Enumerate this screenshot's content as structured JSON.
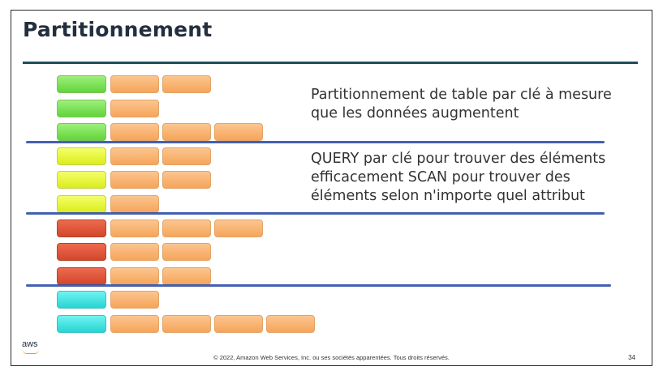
{
  "slide": {
    "title": "Partitionnement",
    "paragraph1": [
      "Partitionnement de table par clé à mesure",
      "que les données augmentent"
    ],
    "paragraph2": [
      "QUERY par clé pour trouver des éléments",
      "efficacement SCAN pour trouver des",
      "éléments selon n'importe quel attribut"
    ],
    "footer": "© 2022, Amazon Web Services, Inc. ou ses sociétés apparentées. Tous droits réservés.",
    "page_number": "34",
    "logo_text": "aws"
  },
  "table_rows": [
    {
      "key_color": "green",
      "items": 2
    },
    {
      "key_color": "green",
      "items": 1
    },
    {
      "key_color": "green",
      "items": 3
    },
    {
      "key_color": "yellow",
      "items": 2
    },
    {
      "key_color": "yellow",
      "items": 2
    },
    {
      "key_color": "yellow",
      "items": 1
    },
    {
      "key_color": "red",
      "items": 3
    },
    {
      "key_color": "red",
      "items": 2
    },
    {
      "key_color": "red",
      "items": 2
    },
    {
      "key_color": "cyan",
      "items": 1
    },
    {
      "key_color": "cyan",
      "items": 4
    }
  ],
  "colors": {
    "title": "#232f3e",
    "title_rule": "#1f4e5a",
    "separator": "#2f4fa8",
    "orange": "#f5a55a",
    "green": "#62d43a",
    "yellow": "#dbec1c",
    "red": "#d2472c",
    "cyan": "#28d4d2"
  }
}
